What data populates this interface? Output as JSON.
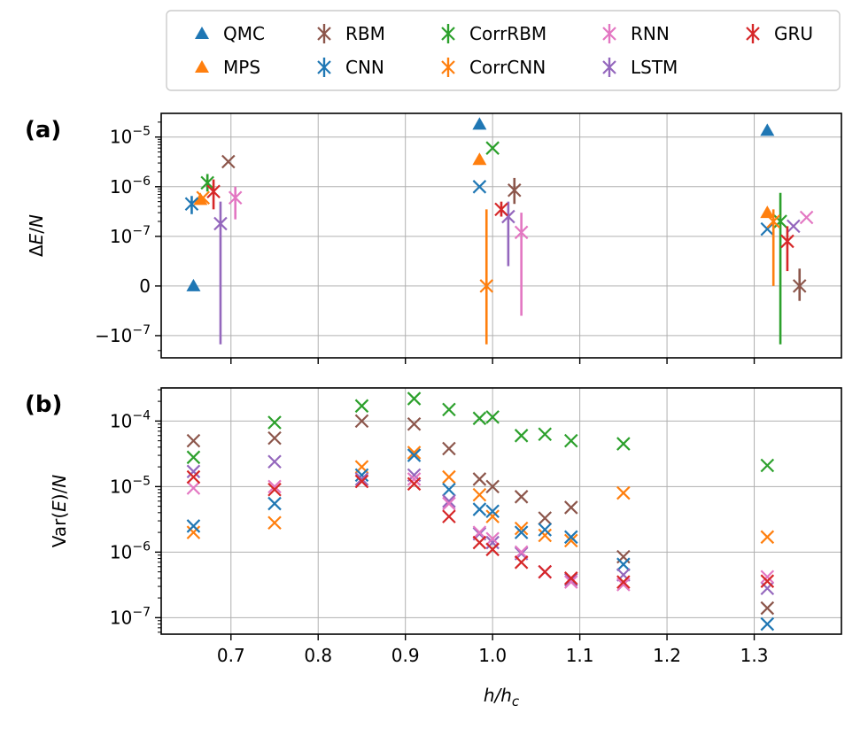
{
  "chart_data": [
    {
      "panel_label": "(a)",
      "type": "scatter",
      "ylabel": "ΔE/N",
      "yscale": "symlog",
      "linthresh": 1e-07,
      "xlim": [
        0.62,
        1.4
      ],
      "ylim": [
        -2.8e-07,
        3e-05
      ],
      "xticks": [
        0.7,
        0.8,
        0.9,
        1.0,
        1.1,
        1.2,
        1.3
      ],
      "yticks": [
        {
          "value": -1e-07,
          "base": "−10",
          "exp": "−7"
        },
        {
          "value": 0,
          "plain": "0"
        },
        {
          "value": 1e-07,
          "base": "10",
          "exp": "−7"
        },
        {
          "value": 1e-06,
          "base": "10",
          "exp": "−6"
        },
        {
          "value": 1e-05,
          "base": "10",
          "exp": "−5"
        }
      ],
      "series": [
        {
          "name": "QMC",
          "marker": "triangle",
          "color": "#1f77b4",
          "points": [
            {
              "x": 0.657,
              "y": 0
            },
            {
              "x": 0.985,
              "y": 1.8e-05
            },
            {
              "x": 1.315,
              "y": 1.35e-05
            }
          ]
        },
        {
          "name": "MPS",
          "marker": "triangle",
          "color": "#ff7f0e",
          "points": [
            {
              "x": 0.665,
              "y": 5.5e-07
            },
            {
              "x": 0.985,
              "y": 3.5e-06
            },
            {
              "x": 1.315,
              "y": 3e-07
            }
          ]
        },
        {
          "name": "RBM",
          "marker": "x",
          "color": "#8c564b",
          "points": [
            {
              "x": 0.697,
              "y": 3.2e-06
            },
            {
              "x": 1.025,
              "y": 8.5e-07,
              "ylo": 4.5e-07,
              "yhi": 1.5e-06
            },
            {
              "x": 1.352,
              "y": 0,
              "ylo": -3e-08,
              "yhi": 3.5e-08
            }
          ]
        },
        {
          "name": "CNN",
          "marker": "x",
          "color": "#1f77b4",
          "points": [
            {
              "x": 0.655,
              "y": 4.5e-07,
              "ylo": 2.8e-07,
              "yhi": 6.5e-07
            },
            {
              "x": 0.985,
              "y": 1e-06
            },
            {
              "x": 1.315,
              "y": 1.4e-07
            }
          ]
        },
        {
          "name": "CorrRBM",
          "marker": "x",
          "color": "#2ca02c",
          "points": [
            {
              "x": 0.673,
              "y": 1.2e-06,
              "ylo": 8e-07,
              "yhi": 1.8e-06
            },
            {
              "x": 1.0,
              "y": 6e-06
            },
            {
              "x": 1.33,
              "y": 2e-07,
              "ylo": -1.5e-07,
              "yhi": 7.5e-07
            }
          ]
        },
        {
          "name": "CorrCNN",
          "marker": "x",
          "color": "#ff7f0e",
          "points": [
            {
              "x": 0.668,
              "y": 6e-07
            },
            {
              "x": 0.993,
              "y": 0,
              "ylo": -1.5e-07,
              "yhi": 3.5e-07
            },
            {
              "x": 1.322,
              "y": 2e-07,
              "ylo": 0,
              "yhi": 3.5e-07
            }
          ]
        },
        {
          "name": "RNN",
          "marker": "x",
          "color": "#e377c2",
          "points": [
            {
              "x": 0.705,
              "y": 6e-07,
              "ylo": 2.2e-07,
              "yhi": 1e-06
            },
            {
              "x": 1.033,
              "y": 1.2e-07,
              "ylo": -6e-08,
              "yhi": 3e-07
            },
            {
              "x": 1.36,
              "y": 2.4e-07
            }
          ]
        },
        {
          "name": "LSTM",
          "marker": "x",
          "color": "#9467bd",
          "points": [
            {
              "x": 0.688,
              "y": 1.8e-07,
              "ylo": -1.5e-07,
              "yhi": 5e-07
            },
            {
              "x": 1.018,
              "y": 2.5e-07,
              "ylo": 4e-08,
              "yhi": 5e-07
            },
            {
              "x": 1.345,
              "y": 1.6e-07
            }
          ]
        },
        {
          "name": "GRU",
          "marker": "x",
          "color": "#d62728",
          "points": [
            {
              "x": 0.68,
              "y": 8e-07,
              "ylo": 3.5e-07,
              "yhi": 1.4e-06
            },
            {
              "x": 1.01,
              "y": 3.5e-07,
              "ylo": 2.5e-07,
              "yhi": 5e-07
            },
            {
              "x": 1.338,
              "y": 9e-08,
              "ylo": 3e-08,
              "yhi": 1.6e-07
            }
          ]
        }
      ]
    },
    {
      "panel_label": "(b)",
      "type": "scatter",
      "ylabel": "Var(E)/N",
      "xlabel": "h/hc",
      "yscale": "log",
      "xlim": [
        0.62,
        1.4
      ],
      "ylim": [
        5.6e-08,
        0.00032
      ],
      "xticks": [
        0.7,
        0.8,
        0.9,
        1.0,
        1.1,
        1.2,
        1.3
      ],
      "yticks": [
        {
          "value": 1e-07,
          "base": "10",
          "exp": "−7"
        },
        {
          "value": 1e-06,
          "base": "10",
          "exp": "−6"
        },
        {
          "value": 1e-05,
          "base": "10",
          "exp": "−5"
        },
        {
          "value": 0.0001,
          "base": "10",
          "exp": "−4"
        }
      ],
      "x": [
        0.657,
        0.75,
        0.85,
        0.91,
        0.95,
        0.985,
        1.0,
        1.033,
        1.06,
        1.09,
        1.15,
        1.315
      ],
      "series": [
        {
          "name": "CorrRBM",
          "color": "#2ca02c",
          "values": [
            2.8e-05,
            9.5e-05,
            0.00017,
            0.00022,
            0.00015,
            0.00011,
            0.000115,
            6e-05,
            6.3e-05,
            5e-05,
            4.5e-05,
            2.1e-05
          ]
        },
        {
          "name": "RBM",
          "color": "#8c564b",
          "values": [
            5e-05,
            5.5e-05,
            0.0001,
            9e-05,
            3.8e-05,
            1.3e-05,
            1e-05,
            7e-06,
            3.3e-06,
            4.8e-06,
            8.5e-07,
            1.4e-07
          ]
        },
        {
          "name": "CorrCNN",
          "color": "#ff7f0e",
          "values": [
            2e-06,
            2.8e-06,
            2e-05,
            3.3e-05,
            1.4e-05,
            7.5e-06,
            3.5e-06,
            2.3e-06,
            1.8e-06,
            1.5e-06,
            8e-06,
            1.7e-06
          ]
        },
        {
          "name": "CNN",
          "color": "#1f77b4",
          "values": [
            2.5e-06,
            5.5e-06,
            1.5e-05,
            3e-05,
            9e-06,
            4.5e-06,
            4.2e-06,
            2e-06,
            2.2e-06,
            1.7e-06,
            6.5e-07,
            8e-08
          ]
        },
        {
          "name": "LSTM",
          "color": "#9467bd",
          "values": [
            1.7e-05,
            2.4e-05,
            1.3e-05,
            1.5e-05,
            6e-06,
            1.9e-06,
            1.4e-06,
            9.5e-07,
            5e-07,
            3.8e-07,
            4.5e-07,
            2.8e-07
          ]
        },
        {
          "name": "RNN",
          "color": "#e377c2",
          "values": [
            9.5e-06,
            1e-05,
            1.2e-05,
            1.3e-05,
            5.5e-06,
            2e-06,
            1.6e-06,
            1e-06,
            5e-07,
            3.5e-07,
            3.2e-07,
            4.2e-07
          ]
        },
        {
          "name": "GRU",
          "color": "#d62728",
          "values": [
            1.4e-05,
            9e-06,
            1.2e-05,
            1.1e-05,
            3.5e-06,
            1.4e-06,
            1.1e-06,
            7e-07,
            5e-07,
            4e-07,
            3.5e-07,
            3.6e-07
          ]
        }
      ]
    }
  ],
  "legend": [
    {
      "name": "QMC",
      "marker": "triangle",
      "color": "#1f77b4"
    },
    {
      "name": "MPS",
      "marker": "triangle",
      "color": "#ff7f0e"
    },
    {
      "name": "RBM",
      "marker": "x",
      "color": "#8c564b"
    },
    {
      "name": "CNN",
      "marker": "x",
      "color": "#1f77b4"
    },
    {
      "name": "CorrRBM",
      "marker": "x",
      "color": "#2ca02c"
    },
    {
      "name": "CorrCNN",
      "marker": "x",
      "color": "#ff7f0e"
    },
    {
      "name": "RNN",
      "marker": "x",
      "color": "#e377c2"
    },
    {
      "name": "LSTM",
      "marker": "x",
      "color": "#9467bd"
    },
    {
      "name": "GRU",
      "marker": "x",
      "color": "#d62728"
    }
  ],
  "shared_xlabel": {
    "base": "h/h",
    "sub": "c"
  }
}
